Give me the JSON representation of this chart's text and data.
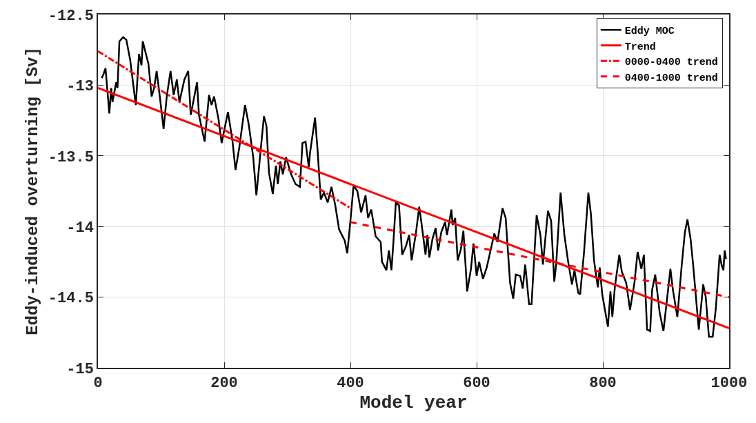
{
  "chart_data": {
    "type": "line",
    "xlabel": "Model year",
    "ylabel": "Eddy-induced overturning [Sv]",
    "xlim": [
      0,
      1000
    ],
    "xticks": [
      0,
      200,
      400,
      600,
      800,
      1000
    ],
    "ylim": [
      -15,
      -12.5
    ],
    "yticks": [
      -15,
      -14.5,
      -14,
      -13.5,
      -13,
      -12.5
    ],
    "grid": true,
    "legend": "top right",
    "marker": "none",
    "series": [
      {
        "name": "Eddy MOC",
        "color": "#000000",
        "line_style": "solid",
        "x": [
          6,
          9,
          12,
          18,
          21,
          23,
          29,
          31,
          34,
          40,
          45,
          51,
          58,
          60,
          65,
          69,
          71,
          80,
          85,
          89,
          93,
          98,
          104,
          109,
          115,
          120,
          125,
          129,
          137,
          143,
          147,
          157,
          160,
          169,
          176,
          180,
          184,
          191,
          196,
          206,
          213,
          218,
          224,
          233,
          239,
          246,
          251,
          258,
          263,
          267,
          271,
          277,
          282,
          285,
          289,
          293,
          298,
          306,
          313,
          320,
          324,
          329,
          334,
          336,
          344,
          348,
          353,
          358,
          364,
          370,
          376,
          382,
          391,
          395,
          400,
          405,
          411,
          417,
          424,
          428,
          433,
          440,
          448,
          450,
          457,
          461,
          465,
          468,
          472,
          477,
          482,
          488,
          493,
          497,
          504,
          509,
          513,
          519,
          522,
          525,
          530,
          535,
          539,
          544,
          550,
          553,
          560,
          562,
          566,
          570,
          575,
          579,
          585,
          591,
          595,
          600,
          604,
          610,
          616,
          628,
          633,
          641,
          646,
          653,
          658,
          662,
          669,
          673,
          677,
          683,
          687,
          695,
          701,
          705,
          713,
          718,
          723,
          726,
          733,
          739,
          745,
          751,
          755,
          761,
          764,
          770,
          777,
          781,
          786,
          792,
          795,
          799,
          808,
          812,
          815,
          819,
          826,
          830,
          837,
          843,
          850,
          855,
          861,
          865,
          870,
          875,
          878,
          883,
          890,
          896,
          907,
          911,
          918,
          925,
          930,
          934,
          939,
          943,
          949,
          952,
          959,
          963,
          968,
          974,
          979,
          985,
          988,
          991,
          993,
          995
        ],
        "values": [
          -12.95,
          -12.92,
          -12.88,
          -13.2,
          -13.02,
          -13.12,
          -12.98,
          -13.02,
          -12.69,
          -12.66,
          -12.68,
          -12.82,
          -13.07,
          -13.14,
          -12.78,
          -12.86,
          -12.69,
          -12.85,
          -13.08,
          -13.02,
          -12.9,
          -13.08,
          -13.31,
          -13.08,
          -12.9,
          -13.07,
          -12.96,
          -13.12,
          -12.96,
          -12.9,
          -13.21,
          -12.98,
          -13.21,
          -13.4,
          -13.07,
          -13.14,
          -13.08,
          -13.24,
          -13.41,
          -13.19,
          -13.39,
          -13.6,
          -13.44,
          -13.14,
          -13.28,
          -13.51,
          -13.78,
          -13.45,
          -13.22,
          -13.29,
          -13.62,
          -13.77,
          -13.57,
          -13.7,
          -13.54,
          -13.63,
          -13.51,
          -13.63,
          -13.7,
          -13.72,
          -13.41,
          -13.4,
          -13.58,
          -13.48,
          -13.23,
          -13.46,
          -13.81,
          -13.76,
          -13.83,
          -13.72,
          -13.85,
          -14.02,
          -14.1,
          -14.19,
          -13.96,
          -13.71,
          -13.75,
          -13.9,
          -13.78,
          -13.94,
          -13.88,
          -14.07,
          -14.11,
          -14.25,
          -14.31,
          -14.17,
          -14.31,
          -14.12,
          -13.83,
          -13.85,
          -14.2,
          -14.14,
          -14.06,
          -14.24,
          -14.04,
          -13.86,
          -13.99,
          -14.2,
          -14.06,
          -14.22,
          -14.09,
          -14.01,
          -14.17,
          -14.04,
          -13.97,
          -14.06,
          -13.88,
          -13.99,
          -13.94,
          -14.24,
          -14.16,
          -14.03,
          -14.46,
          -14.3,
          -14.12,
          -14.35,
          -14.25,
          -14.37,
          -14.29,
          -14.05,
          -14.11,
          -13.87,
          -13.94,
          -14.4,
          -14.51,
          -14.34,
          -14.35,
          -14.44,
          -14.27,
          -14.55,
          -14.55,
          -13.92,
          -14.06,
          -14.27,
          -13.89,
          -13.96,
          -14.39,
          -14.27,
          -13.76,
          -14.06,
          -14.25,
          -14.41,
          -14.31,
          -14.47,
          -14.48,
          -14.19,
          -13.76,
          -13.91,
          -14.24,
          -14.43,
          -14.29,
          -14.48,
          -14.71,
          -14.46,
          -14.64,
          -14.43,
          -14.2,
          -14.32,
          -14.4,
          -14.59,
          -14.4,
          -14.18,
          -14.3,
          -14.2,
          -14.73,
          -14.74,
          -14.45,
          -14.34,
          -14.61,
          -14.74,
          -14.3,
          -14.45,
          -14.64,
          -14.27,
          -14.04,
          -13.95,
          -14.09,
          -14.27,
          -14.58,
          -14.73,
          -14.41,
          -14.5,
          -14.78,
          -14.78,
          -14.58,
          -14.2,
          -14.27,
          -14.31,
          -14.17,
          -14.23
        ]
      },
      {
        "name": "Trend",
        "color": "#ff0000",
        "line_style": "solid",
        "x": [
          0,
          1000
        ],
        "values": [
          -13.02,
          -14.72
        ]
      },
      {
        "name": "0000-0400 trend",
        "color": "#ff0000",
        "line_style": "dashdot",
        "x": [
          0,
          400
        ],
        "values": [
          -12.76,
          -13.87
        ]
      },
      {
        "name": "0400-1000 trend",
        "color": "#ff0000",
        "line_style": "dashed",
        "x": [
          400,
          1000
        ],
        "values": [
          -13.97,
          -14.5
        ]
      }
    ]
  }
}
